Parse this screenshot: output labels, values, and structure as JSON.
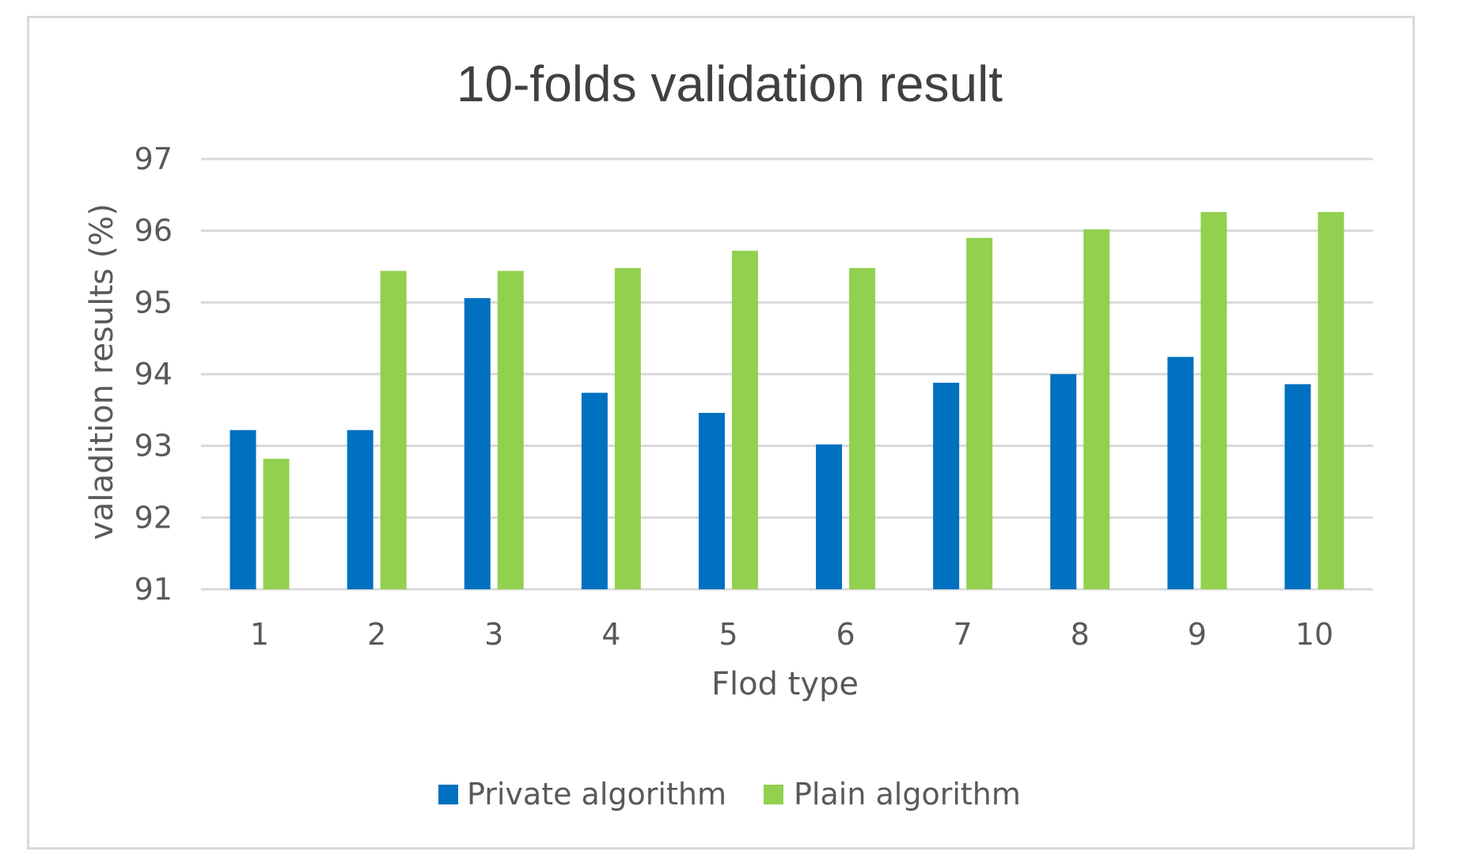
{
  "chart_data": {
    "type": "bar",
    "title": "10-folds validation result",
    "xlabel": "Flod type",
    "ylabel": "valadition results (%)",
    "categories": [
      "1",
      "2",
      "3",
      "4",
      "5",
      "6",
      "7",
      "8",
      "9",
      "10"
    ],
    "series": [
      {
        "name": "Private algorithm",
        "color": "#0070c0",
        "values": [
          93.22,
          93.22,
          95.06,
          93.74,
          93.46,
          93.02,
          93.88,
          94.0,
          94.24,
          93.86
        ]
      },
      {
        "name": "Plain algorithm",
        "color": "#92d050",
        "values": [
          92.82,
          95.44,
          95.44,
          95.48,
          95.72,
          95.48,
          95.9,
          96.02,
          96.26,
          96.26
        ]
      }
    ],
    "ylim": [
      91,
      97
    ],
    "yticks": [
      91,
      92,
      93,
      94,
      95,
      96,
      97
    ],
    "grid": true,
    "gridColor": "#d9d9d9",
    "legend_position": "bottom"
  }
}
